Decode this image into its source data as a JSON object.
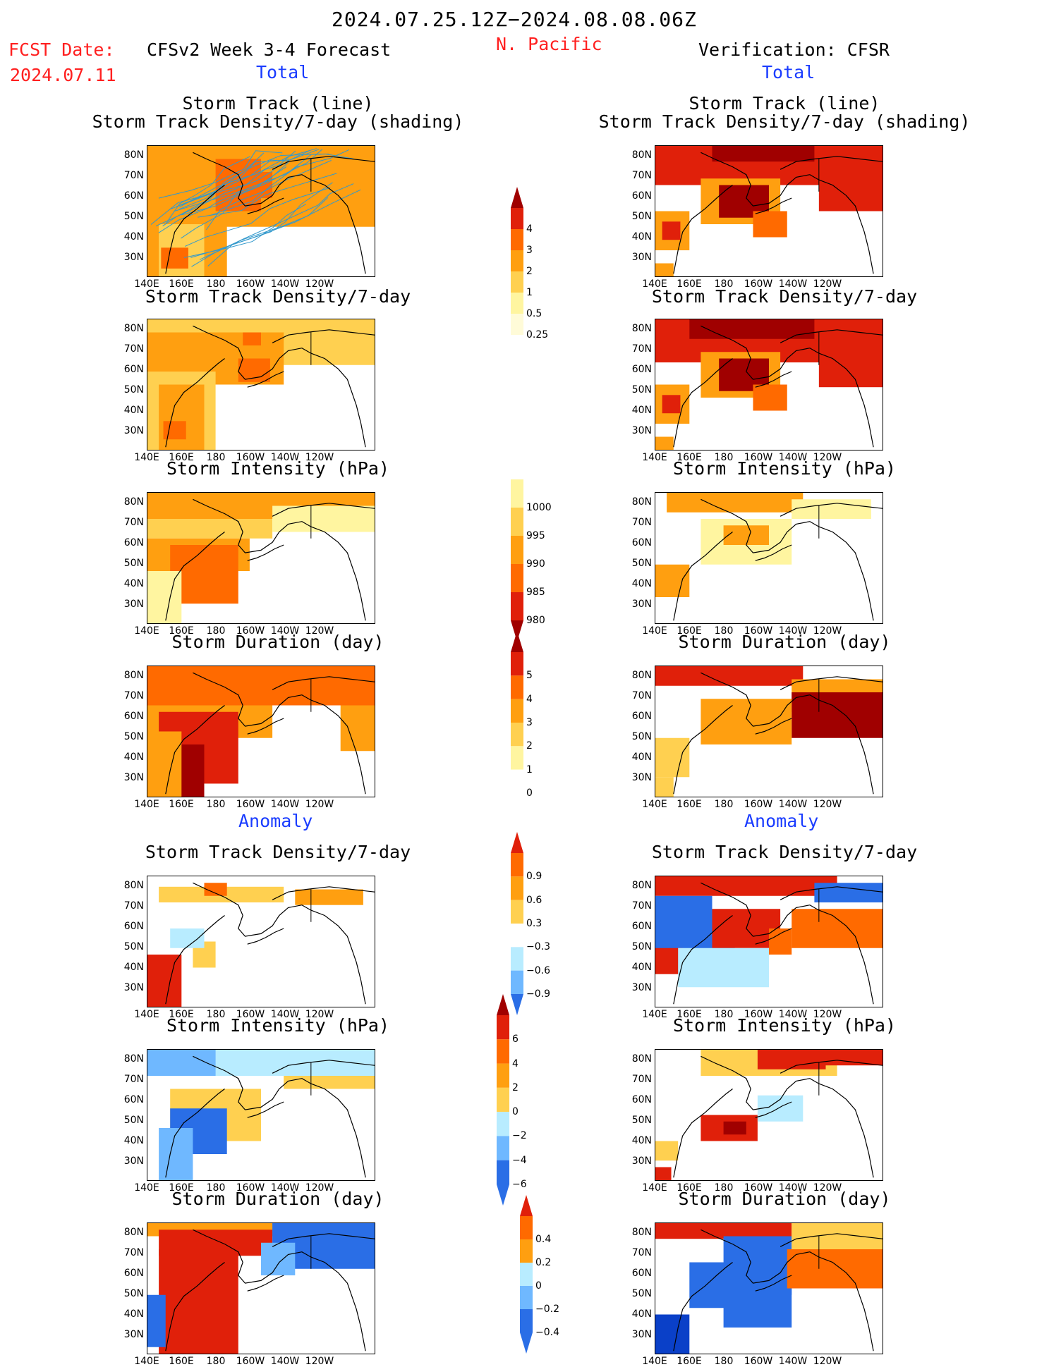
{
  "header": {
    "period": "2024.07.25.12Z−2024.08.08.06Z",
    "fcst_label": "FCST Date:",
    "fcst_date": "2024.07.11",
    "region": "N. Pacific",
    "left_title": "CFSv2 Week 3-4 Forecast",
    "right_title": "Verification: CFSR",
    "total_label": "Total",
    "anomaly_label": "Anomaly"
  },
  "panel_titles": {
    "track_line": "Storm Track (line)",
    "track_shading": "Storm Track Density/7-day (shading)",
    "density": "Storm Track Density/7-day",
    "intensity": "Storm Intensity (hPa)",
    "duration": "Storm Duration (day)"
  },
  "axes": {
    "lat_labels": [
      "80N",
      "70N",
      "60N",
      "50N",
      "40N",
      "30N"
    ],
    "lon_labels": [
      "140E",
      "160E",
      "180",
      "160W",
      "140W",
      "120W"
    ]
  },
  "colorbars": {
    "density_total": [
      "4",
      "3",
      "2",
      "1",
      "0.5",
      "0.25"
    ],
    "intensity_total": [
      "1000",
      "995",
      "990",
      "985",
      "980"
    ],
    "duration_total": [
      "5",
      "4",
      "3",
      "2",
      "1",
      "0"
    ],
    "density_anom": [
      "0.9",
      "0.6",
      "0.3",
      "−0.3",
      "−0.6",
      "−0.9"
    ],
    "intensity_anom": [
      "6",
      "4",
      "2",
      "0",
      "−2",
      "−4",
      "−6"
    ],
    "duration_anom": [
      "0.4",
      "0.2",
      "0",
      "−0.2",
      "−0.4"
    ]
  },
  "colors": {
    "pale_yellow": "#fff5a0",
    "light_orange": "#ffd050",
    "orange": "#ff9f10",
    "dark_orange": "#ff6a00",
    "red": "#e0200a",
    "dark_red": "#a00000",
    "light_blue": "#b8ecff",
    "mid_blue": "#6fb8ff",
    "blue": "#2a6ee6",
    "dark_blue": "#0a40c8",
    "track_line": "#3399cc"
  }
}
